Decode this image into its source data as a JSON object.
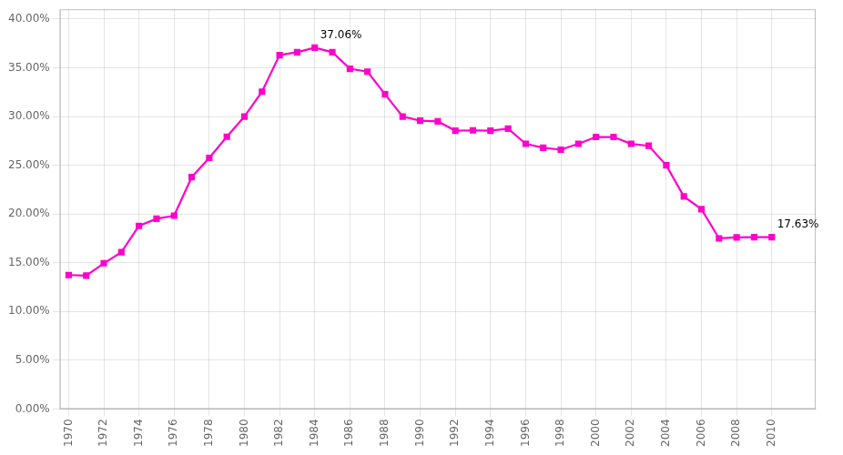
{
  "chart_data": {
    "type": "line",
    "x": [
      1970,
      1971,
      1972,
      1973,
      1974,
      1975,
      1976,
      1977,
      1978,
      1979,
      1980,
      1981,
      1982,
      1983,
      1984,
      1985,
      1986,
      1987,
      1988,
      1989,
      1990,
      1991,
      1992,
      1993,
      1994,
      1995,
      1996,
      1997,
      1998,
      1999,
      2000,
      2001,
      2002,
      2003,
      2004,
      2005,
      2006,
      2007,
      2008,
      2009,
      2010
    ],
    "values": [
      0.1374,
      0.1368,
      0.1495,
      0.1609,
      0.1878,
      0.1951,
      0.1983,
      0.2378,
      0.2576,
      0.2793,
      0.3,
      0.3255,
      0.363,
      0.366,
      0.3706,
      0.366,
      0.349,
      0.346,
      0.3228,
      0.3,
      0.2957,
      0.295,
      0.2855,
      0.2858,
      0.2855,
      0.2875,
      0.272,
      0.268,
      0.266,
      0.272,
      0.279,
      0.279,
      0.272,
      0.27,
      0.25,
      0.218,
      0.205,
      0.175,
      0.176,
      0.1763,
      0.1763
    ],
    "color": "#FF00CC",
    "marker": "square",
    "xlim": [
      1969.5,
      2012.5
    ],
    "xticks": [
      1970,
      1972,
      1974,
      1976,
      1978,
      1980,
      1982,
      1984,
      1986,
      1988,
      1990,
      1992,
      1994,
      1996,
      1998,
      2000,
      2002,
      2004,
      2006,
      2008,
      2010
    ],
    "ylim": [
      0.0,
      0.41
    ],
    "yticks": [
      {
        "value": 0.0,
        "label": "0.00%"
      },
      {
        "value": 0.05,
        "label": "5.00%"
      },
      {
        "value": 0.1,
        "label": "10.00%"
      },
      {
        "value": 0.15,
        "label": "15.00%"
      },
      {
        "value": 0.2,
        "label": "20.00%"
      },
      {
        "value": 0.25,
        "label": "25.00%"
      },
      {
        "value": 0.3,
        "label": "30.00%"
      },
      {
        "value": 0.35,
        "label": "35.00%"
      },
      {
        "value": 0.4,
        "label": "40.00%"
      }
    ],
    "grid": true,
    "annotations": [
      {
        "text": "37.06%",
        "x": 1984,
        "y": 0.3706
      },
      {
        "text": "17.63%",
        "x": 2010,
        "y": 0.1763
      }
    ]
  }
}
